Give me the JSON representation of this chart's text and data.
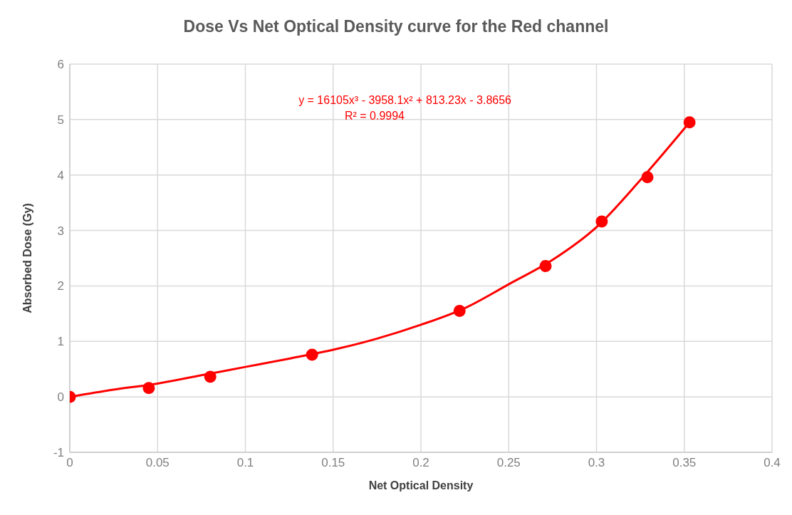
{
  "chart_data": {
    "type": "scatter",
    "title": "Dose Vs Net Optical Density curve for the Red channel",
    "xlabel": "Net Optical Density",
    "ylabel": "Absorbed Dose (Gy)",
    "annotations": [
      "y = 16105x³ - 3958.1x² + 813.23x - 3.8656",
      "R² = 0.9994"
    ],
    "series": [
      {
        "color": "#ff0000",
        "marker": "circle",
        "x": [
          0,
          0.045,
          0.08,
          0.138,
          0.222,
          0.271,
          0.303,
          0.329,
          0.353
        ],
        "values": [
          0,
          0.16,
          0.36,
          0.76,
          1.55,
          2.36,
          3.16,
          3.96,
          4.95
        ]
      },
      {
        "type": "line",
        "color": "#ff0000",
        "marker": "none",
        "line_style": "solid",
        "x": [
          0,
          0.025,
          0.05,
          0.075,
          0.1,
          0.125,
          0.15,
          0.175,
          0.2,
          0.225,
          0.25,
          0.275,
          0.3,
          0.325,
          0.353
        ],
        "values": [
          0,
          0.13,
          0.24,
          0.39,
          0.54,
          0.69,
          0.85,
          1.05,
          1.3,
          1.6,
          2.03,
          2.47,
          3.06,
          3.91,
          4.95
        ]
      }
    ],
    "xlim": [
      0,
      0.4
    ],
    "xticks": [
      0,
      0.05,
      0.1,
      0.15,
      0.2,
      0.25,
      0.3,
      0.35,
      0.4
    ],
    "ylim": [
      -1,
      6
    ],
    "yticks": [
      -1,
      0,
      1,
      2,
      3,
      4,
      5,
      6
    ],
    "grid": true
  }
}
